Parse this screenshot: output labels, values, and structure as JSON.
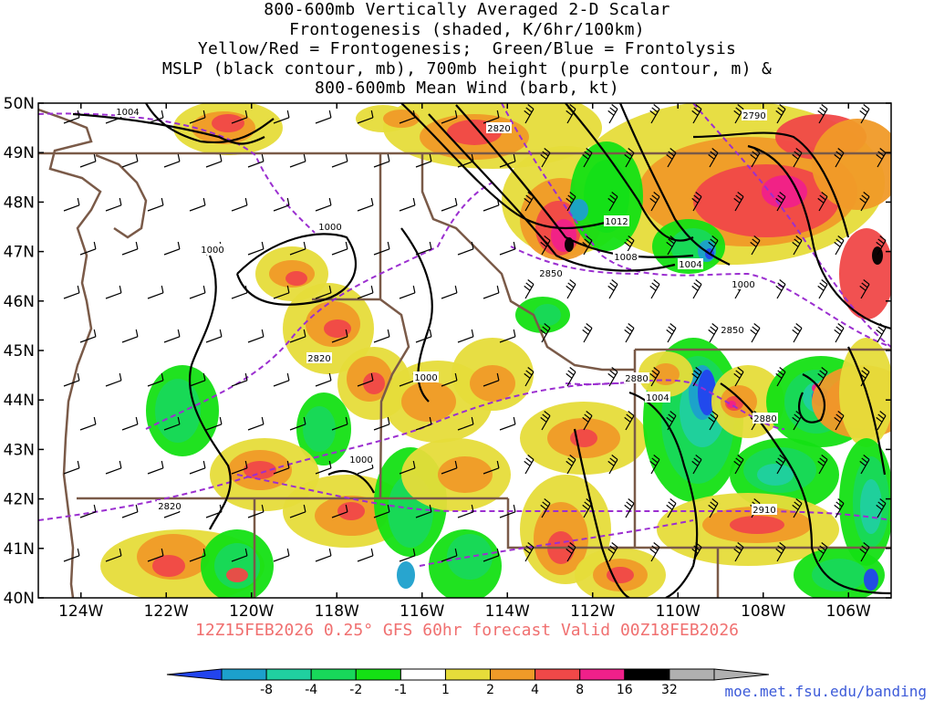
{
  "title": {
    "lines": [
      "800-600mb Vertically Averaged 2-D Scalar",
      "Frontogenesis (shaded, K/6hr/100km)",
      "Yellow/Red = Frontogenesis;  Green/Blue = Frontolysis",
      "MSLP (black contour, mb), 700mb height (purple contour, m) &",
      "800-600mb Mean Wind (barb, kt)"
    ]
  },
  "map": {
    "lon_range": [
      -125,
      -105
    ],
    "lat_range": [
      40,
      50
    ],
    "lat_labels": [
      "50N",
      "49N",
      "48N",
      "47N",
      "46N",
      "45N",
      "44N",
      "43N",
      "42N",
      "41N",
      "40N"
    ],
    "lon_labels": [
      "124W",
      "122W",
      "120W",
      "118W",
      "116W",
      "114W",
      "112W",
      "110W",
      "108W",
      "106W"
    ],
    "mslp_labels": [
      "1004",
      "1000",
      "1000",
      "1000",
      "1000",
      "1012",
      "1008",
      "1004",
      "1000",
      "1004"
    ],
    "height_labels": [
      "2820",
      "2790",
      "2850",
      "2820",
      "2850",
      "2880",
      "2880",
      "2910",
      "2820"
    ],
    "colors": {
      "mslp": "#000000",
      "height": "#9b2fd0",
      "borders": "#7a5a48",
      "barbs": "#000000"
    }
  },
  "footer": {
    "valid": "12Z15FEB2026 0.25° GFS 60hr forecast Valid 00Z18FEB2026",
    "credit": "moe.met.fsu.edu/banding"
  },
  "colorbar": {
    "labels": [
      "-8",
      "-4",
      "-2",
      "-1",
      "1",
      "2",
      "4",
      "8",
      "16",
      "32"
    ],
    "colors": [
      "#2244ee",
      "#1ca0cc",
      "#20d0a0",
      "#18d85a",
      "#14e014",
      "#ffffff",
      "#e6dc3a",
      "#f09a28",
      "#f04848",
      "#f0208a",
      "#000000",
      "#b0b0b0"
    ]
  }
}
